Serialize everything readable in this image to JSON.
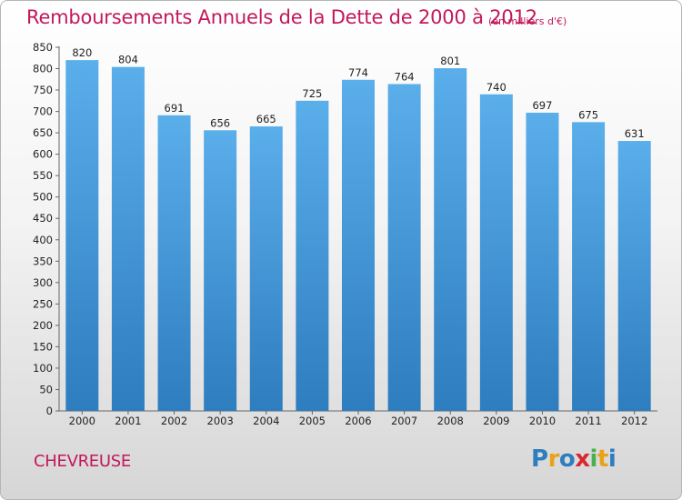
{
  "chart_data": {
    "type": "bar",
    "title": "Remboursements Annuels de la Dette de 2000 à 2012",
    "unit_note": "(en milliers d'€)",
    "categories": [
      "2000",
      "2001",
      "2002",
      "2003",
      "2004",
      "2005",
      "2006",
      "2007",
      "2008",
      "2009",
      "2010",
      "2011",
      "2012"
    ],
    "values": [
      820,
      804,
      691,
      656,
      665,
      725,
      774,
      764,
      801,
      740,
      697,
      675,
      631
    ],
    "ylim": [
      0,
      850
    ],
    "yticks": [
      0,
      50,
      100,
      150,
      200,
      250,
      300,
      350,
      400,
      450,
      500,
      550,
      600,
      650,
      700,
      750,
      800,
      850
    ],
    "grid": false,
    "legend": "none",
    "bar_color_top": "#5aaeea",
    "bar_color_bottom": "#2e7dbf"
  },
  "footer": {
    "place_name": "CHEVREUSE",
    "logo_text": "Proxiti",
    "logo_colors": [
      "#2e7dbf",
      "#e8a21a",
      "#2e7dbf",
      "#d9272d",
      "#4caf50",
      "#e8a21a",
      "#2e7dbf"
    ]
  },
  "colors": {
    "title": "#c2185b"
  }
}
